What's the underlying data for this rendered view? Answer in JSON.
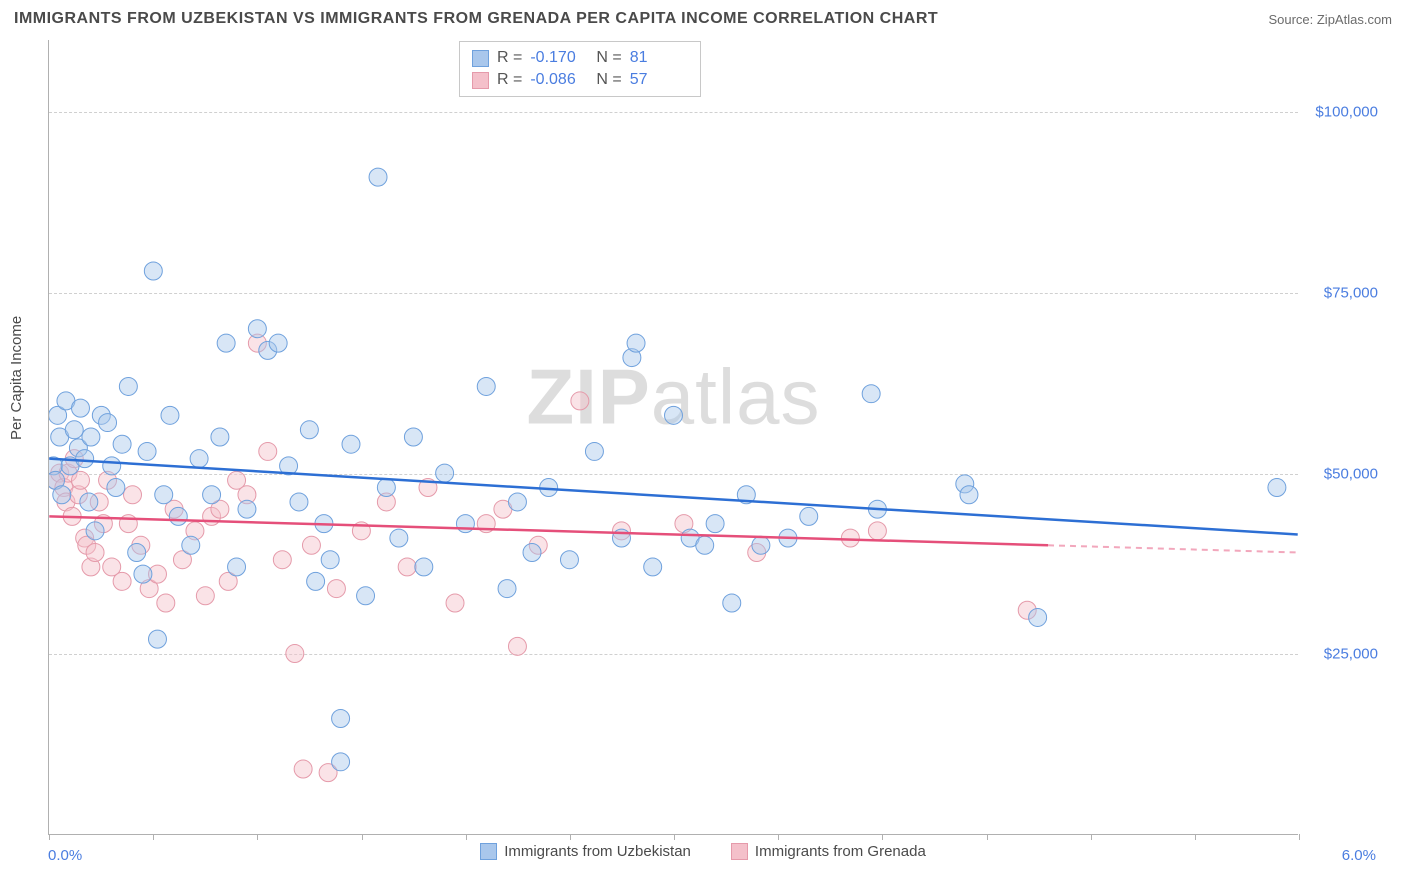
{
  "title": "IMMIGRANTS FROM UZBEKISTAN VS IMMIGRANTS FROM GRENADA PER CAPITA INCOME CORRELATION CHART",
  "source": "Source: ZipAtlas.com",
  "watermark": "ZIPatlas",
  "chart": {
    "type": "scatter",
    "ylabel": "Per Capita Income",
    "xlim": [
      0.0,
      6.0
    ],
    "xlabel_min": "0.0%",
    "xlabel_max": "6.0%",
    "ylim": [
      0,
      110000
    ],
    "yticks": [
      25000,
      50000,
      75000,
      100000
    ],
    "ytick_labels": [
      "$25,000",
      "$50,000",
      "$75,000",
      "$100,000"
    ],
    "xtick_positions": [
      0,
      0.5,
      1.0,
      1.5,
      2.0,
      2.5,
      3.0,
      3.5,
      4.0,
      4.5,
      5.0,
      5.5,
      6.0
    ],
    "background_color": "#ffffff",
    "grid_color": "#d0d0d0",
    "axis_color": "#b0b0b0",
    "marker_radius": 9,
    "marker_opacity": 0.45,
    "series": [
      {
        "name": "Immigrants from Uzbekistan",
        "fill_color": "#a9c7ec",
        "stroke_color": "#6fa1dd",
        "line_color": "#2d6fd4",
        "r_value": "-0.170",
        "n_value": "81",
        "trend": {
          "x1": 0.0,
          "y1": 52000,
          "x2": 6.0,
          "y2": 41500
        },
        "points": [
          [
            0.02,
            51000
          ],
          [
            0.03,
            49000
          ],
          [
            0.04,
            58000
          ],
          [
            0.05,
            55000
          ],
          [
            0.06,
            47000
          ],
          [
            0.08,
            60000
          ],
          [
            0.1,
            51000
          ],
          [
            0.12,
            56000
          ],
          [
            0.14,
            53500
          ],
          [
            0.15,
            59000
          ],
          [
            0.17,
            52000
          ],
          [
            0.19,
            46000
          ],
          [
            0.2,
            55000
          ],
          [
            0.22,
            42000
          ],
          [
            0.25,
            58000
          ],
          [
            0.28,
            57000
          ],
          [
            0.3,
            51000
          ],
          [
            0.32,
            48000
          ],
          [
            0.35,
            54000
          ],
          [
            0.38,
            62000
          ],
          [
            0.42,
            39000
          ],
          [
            0.45,
            36000
          ],
          [
            0.47,
            53000
          ],
          [
            0.5,
            78000
          ],
          [
            0.52,
            27000
          ],
          [
            0.55,
            47000
          ],
          [
            0.58,
            58000
          ],
          [
            0.62,
            44000
          ],
          [
            0.68,
            40000
          ],
          [
            0.72,
            52000
          ],
          [
            0.78,
            47000
          ],
          [
            0.82,
            55000
          ],
          [
            0.85,
            68000
          ],
          [
            0.9,
            37000
          ],
          [
            0.95,
            45000
          ],
          [
            1.0,
            70000
          ],
          [
            1.05,
            67000
          ],
          [
            1.1,
            68000
          ],
          [
            1.15,
            51000
          ],
          [
            1.2,
            46000
          ],
          [
            1.25,
            56000
          ],
          [
            1.28,
            35000
          ],
          [
            1.32,
            43000
          ],
          [
            1.35,
            38000
          ],
          [
            1.4,
            16000
          ],
          [
            1.4,
            10000
          ],
          [
            1.45,
            54000
          ],
          [
            1.52,
            33000
          ],
          [
            1.58,
            91000
          ],
          [
            1.62,
            48000
          ],
          [
            1.68,
            41000
          ],
          [
            1.75,
            55000
          ],
          [
            1.8,
            37000
          ],
          [
            1.9,
            50000
          ],
          [
            2.0,
            43000
          ],
          [
            2.1,
            62000
          ],
          [
            2.2,
            34000
          ],
          [
            2.25,
            46000
          ],
          [
            2.32,
            39000
          ],
          [
            2.4,
            48000
          ],
          [
            2.5,
            38000
          ],
          [
            2.62,
            53000
          ],
          [
            2.75,
            41000
          ],
          [
            2.8,
            66000
          ],
          [
            2.82,
            68000
          ],
          [
            2.9,
            37000
          ],
          [
            3.0,
            58000
          ],
          [
            3.08,
            41000
          ],
          [
            3.15,
            40000
          ],
          [
            3.2,
            43000
          ],
          [
            3.28,
            32000
          ],
          [
            3.35,
            47000
          ],
          [
            3.42,
            40000
          ],
          [
            3.55,
            41000
          ],
          [
            3.65,
            44000
          ],
          [
            3.95,
            61000
          ],
          [
            3.98,
            45000
          ],
          [
            4.4,
            48500
          ],
          [
            4.42,
            47000
          ],
          [
            4.75,
            30000
          ],
          [
            5.9,
            48000
          ]
        ]
      },
      {
        "name": "Immigrants from Grenada",
        "fill_color": "#f4c0ca",
        "stroke_color": "#e59aaa",
        "line_color": "#e54f7a",
        "r_value": "-0.086",
        "n_value": "57",
        "trend": {
          "x1": 0.0,
          "y1": 44000,
          "x2": 4.8,
          "y2": 40000
        },
        "trend_dash": {
          "x1": 4.8,
          "y1": 40000,
          "x2": 6.0,
          "y2": 39000
        },
        "points": [
          [
            0.03,
            49000
          ],
          [
            0.05,
            50000
          ],
          [
            0.07,
            48000
          ],
          [
            0.08,
            46000
          ],
          [
            0.09,
            50000
          ],
          [
            0.11,
            44000
          ],
          [
            0.12,
            52000
          ],
          [
            0.14,
            47000
          ],
          [
            0.15,
            49000
          ],
          [
            0.17,
            41000
          ],
          [
            0.18,
            40000
          ],
          [
            0.2,
            37000
          ],
          [
            0.22,
            39000
          ],
          [
            0.24,
            46000
          ],
          [
            0.26,
            43000
          ],
          [
            0.28,
            49000
          ],
          [
            0.3,
            37000
          ],
          [
            0.35,
            35000
          ],
          [
            0.38,
            43000
          ],
          [
            0.4,
            47000
          ],
          [
            0.44,
            40000
          ],
          [
            0.48,
            34000
          ],
          [
            0.52,
            36000
          ],
          [
            0.56,
            32000
          ],
          [
            0.6,
            45000
          ],
          [
            0.64,
            38000
          ],
          [
            0.7,
            42000
          ],
          [
            0.75,
            33000
          ],
          [
            0.78,
            44000
          ],
          [
            0.82,
            45000
          ],
          [
            0.86,
            35000
          ],
          [
            0.9,
            49000
          ],
          [
            0.95,
            47000
          ],
          [
            1.0,
            68000
          ],
          [
            1.05,
            53000
          ],
          [
            1.12,
            38000
          ],
          [
            1.18,
            25000
          ],
          [
            1.22,
            9000
          ],
          [
            1.26,
            40000
          ],
          [
            1.34,
            8500
          ],
          [
            1.38,
            34000
          ],
          [
            1.5,
            42000
          ],
          [
            1.62,
            46000
          ],
          [
            1.72,
            37000
          ],
          [
            1.82,
            48000
          ],
          [
            1.95,
            32000
          ],
          [
            2.1,
            43000
          ],
          [
            2.18,
            45000
          ],
          [
            2.25,
            26000
          ],
          [
            2.35,
            40000
          ],
          [
            2.55,
            60000
          ],
          [
            2.75,
            42000
          ],
          [
            3.05,
            43000
          ],
          [
            3.4,
            39000
          ],
          [
            3.85,
            41000
          ],
          [
            3.98,
            42000
          ],
          [
            4.7,
            31000
          ]
        ]
      }
    ]
  },
  "legend": {
    "uzbekistan": "Immigrants from Uzbekistan",
    "grenada": "Immigrants from Grenada"
  }
}
